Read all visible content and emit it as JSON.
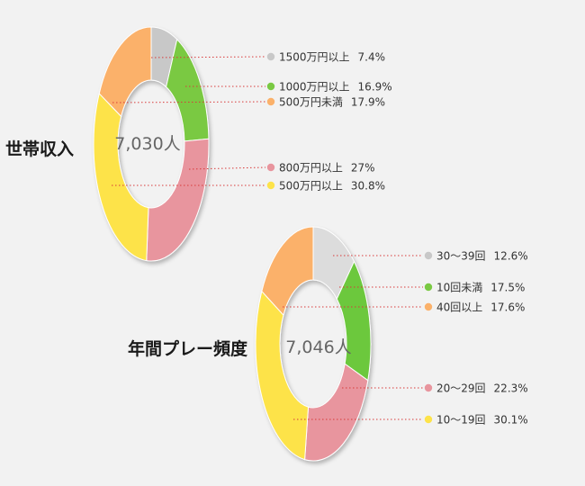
{
  "chart_data": [
    {
      "type": "pie",
      "title": "世帯収入",
      "center_label": "7,030人",
      "categories": [
        "1500万円以上",
        "1000万円以上",
        "800万円以上",
        "500万円以上",
        "500万円未満"
      ],
      "values": [
        7.4,
        16.9,
        27,
        30.8,
        17.9
      ],
      "value_labels": [
        "7.4%",
        "16.9%",
        "27%",
        "30.8%",
        "17.9%"
      ],
      "colors": [
        "#c8c8c8",
        "#7ac943",
        "#e8959e",
        "#fde34a",
        "#fbb16a"
      ],
      "legend": [
        {
          "name": "1500万円以上",
          "value_label": "7.4%",
          "color": "#c8c8c8"
        },
        {
          "name": "1000万円以上",
          "value_label": "16.9%",
          "color": "#7ac943"
        },
        {
          "name": "500万円未満",
          "value_label": "17.9%",
          "color": "#fbb16a"
        },
        {
          "name": "800万円以上",
          "value_label": "27%",
          "color": "#e8959e"
        },
        {
          "name": "500万円以上",
          "value_label": "30.8%",
          "color": "#fde34a"
        }
      ]
    },
    {
      "type": "pie",
      "title": "年間プレー頻度",
      "center_label": "7,046人",
      "categories": [
        "30〜39回",
        "10回未満",
        "20〜29回",
        "10〜19回",
        "40回以上"
      ],
      "values": [
        12.6,
        17.5,
        22.3,
        30.1,
        17.6
      ],
      "value_labels": [
        "12.6%",
        "17.5%",
        "22.3%",
        "30.1%",
        "17.6%"
      ],
      "colors": [
        "#dcdcdc",
        "#6cc83e",
        "#e8959e",
        "#fde34a",
        "#fbb16a"
      ],
      "legend": [
        {
          "name": "30〜39回",
          "value_label": "12.6%",
          "color": "#c8c8c8"
        },
        {
          "name": "10回未満",
          "value_label": "17.5%",
          "color": "#7ac943"
        },
        {
          "name": "40回以上",
          "value_label": "17.6%",
          "color": "#fbb16a"
        },
        {
          "name": "20〜29回",
          "value_label": "22.3%",
          "color": "#e8959e"
        },
        {
          "name": "10〜19回",
          "value_label": "30.1%",
          "color": "#fde34a"
        }
      ]
    }
  ]
}
